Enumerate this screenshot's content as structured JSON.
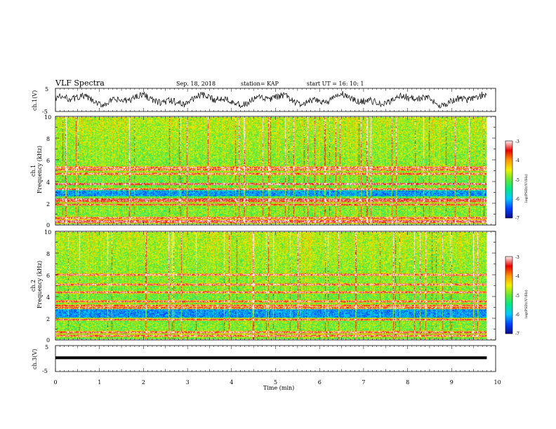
{
  "header": {
    "title": "VLF Spectra",
    "date": "Sep. 18, 2018",
    "station": "station= KAP",
    "start_ut": "start  UT  =   16: 10: 1"
  },
  "chart_data": [
    {
      "type": "line",
      "panel": "ch1-waveform",
      "ylabel": "ch.1(V)",
      "ylim": [
        -5,
        5
      ],
      "y_ticks": [
        "5",
        "-5"
      ],
      "x_range_min": [
        0,
        9.8
      ],
      "series_color": "#000000",
      "note_values": "continuous noisy waveform oscillating roughly between -3 V and +3 V over the 0–9.8 min record"
    },
    {
      "type": "heatmap",
      "panel": "ch1-spectrogram",
      "ylabel": "ch.1\nFrequency  (kHz)",
      "ylim": [
        0,
        10
      ],
      "y_ticks": [
        "0",
        "2",
        "4",
        "6",
        "8",
        "10"
      ],
      "x_range_min": [
        0,
        9.8
      ],
      "colorbar": {
        "label": "log(PSD)(V²/Hz)",
        "range": [
          -7,
          -3
        ],
        "ticks": [
          "-3",
          "-4",
          "-5",
          "-6",
          "-7"
        ],
        "colormap": [
          "#0a0a8c",
          "#0040ff",
          "#00c8ff",
          "#00e68c",
          "#64e632",
          "#f0f000",
          "#ff9600",
          "#e60000",
          "#fff0f0"
        ]
      },
      "spectral_lines_khz": [
        0.15,
        0.3,
        0.55,
        1.8,
        2.15,
        2.3,
        3.25,
        3.75,
        4.7,
        5.1,
        5.3
      ],
      "quiet_bands_khz": [
        [
          2.6,
          3.2
        ]
      ]
    },
    {
      "type": "heatmap",
      "panel": "ch2-spectrogram",
      "ylabel": "ch.2\nFrequency  (kHz)",
      "ylim": [
        0,
        10
      ],
      "y_ticks": [
        "0",
        "2",
        "4",
        "6",
        "8",
        "10"
      ],
      "x_range_min": [
        0,
        9.8
      ],
      "colorbar": {
        "label": "log(PSD)(V²/Hz)",
        "range": [
          -7,
          -3
        ],
        "ticks": [
          "-3",
          "-4",
          "-5",
          "-6",
          "-7"
        ],
        "colormap": [
          "#0a0a8c",
          "#0040ff",
          "#00c8ff",
          "#00e68c",
          "#64e632",
          "#f0f000",
          "#ff9600",
          "#e60000",
          "#fff0f0"
        ]
      },
      "spectral_lines_khz": [
        0.3,
        0.6,
        1.8,
        2.9,
        3.1,
        3.5,
        4.4,
        5.1,
        6.0
      ],
      "quiet_bands_khz": [
        [
          2.0,
          2.8
        ]
      ]
    },
    {
      "type": "line",
      "panel": "ch3-waveform",
      "ylabel": "ch.3(V)",
      "ylim": [
        -5,
        5
      ],
      "y_ticks": [
        "5",
        "-5"
      ],
      "x_range_min": [
        0,
        9.8
      ],
      "series_color": "#000000",
      "values_constant_v": 0.3,
      "xlabel": "Time  (min)",
      "x_ticks": [
        "0",
        "1",
        "2",
        "3",
        "4",
        "5",
        "6",
        "7",
        "8",
        "9",
        "10"
      ],
      "xlim": [
        0,
        10
      ]
    }
  ]
}
